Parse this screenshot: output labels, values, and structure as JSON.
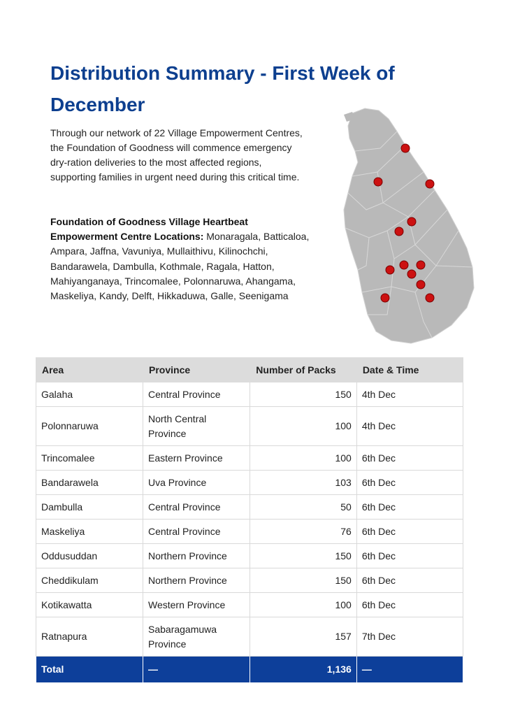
{
  "title": "Distribution Summary - First Week of December",
  "intro": "Through our network of 22 Village Empowerment Centres, the Foundation of Goodness will commence emergency dry-ration deliveries to the most affected regions, supporting families in urgent need during this critical time.",
  "locations": {
    "heading": "Foundation of Goodness Village Heartbeat Empowerment Centre Locations:",
    "list": " Monaragala, Batticaloa, Ampara, Jaffna, Vavuniya, Mullaithivu, Kilinochchi, Bandarawela, Dambulla, Kothmale, Ragala, Hatton, Mahiyanganaya, Trincomalee, Polonnaruwa, Ahangama, Maskeliya, Kandy, Delft, Hikkaduwa, Galle, Seenigama"
  },
  "map": {
    "land_color": "#b9b9b9",
    "marker_color": "#cc1111"
  },
  "table": {
    "headers": [
      "Area",
      "Province",
      "Number of Packs",
      "Date & Time"
    ],
    "rows": [
      {
        "area": "Galaha",
        "province": "Central Province",
        "packs": "150",
        "date": "4th Dec"
      },
      {
        "area": "Polonnaruwa",
        "province": "North Central Province",
        "packs": "100",
        "date": "4th Dec"
      },
      {
        "area": "Trincomalee",
        "province": "Eastern Province",
        "packs": "100",
        "date": "6th Dec"
      },
      {
        "area": "Bandarawela",
        "province": "Uva Province",
        "packs": "103",
        "date": "6th Dec"
      },
      {
        "area": "Dambulla",
        "province": "Central Province",
        "packs": "50",
        "date": "6th Dec"
      },
      {
        "area": "Maskeliya",
        "province": "Central Province",
        "packs": "76",
        "date": "6th Dec"
      },
      {
        "area": "Oddusuddan",
        "province": "Northern Province",
        "packs": "150",
        "date": "6th Dec"
      },
      {
        "area": "Cheddikulam",
        "province": "Northern Province",
        "packs": "150",
        "date": "6th Dec"
      },
      {
        "area": "Kotikawatta",
        "province": "Western Province",
        "packs": "100",
        "date": "6th Dec"
      },
      {
        "area": "Ratnapura",
        "province": "Sabaragamuwa Province",
        "packs": "157",
        "date": "7th Dec"
      }
    ],
    "total": {
      "label": "Total",
      "province": "—",
      "packs": "1,136",
      "date": "—"
    }
  }
}
